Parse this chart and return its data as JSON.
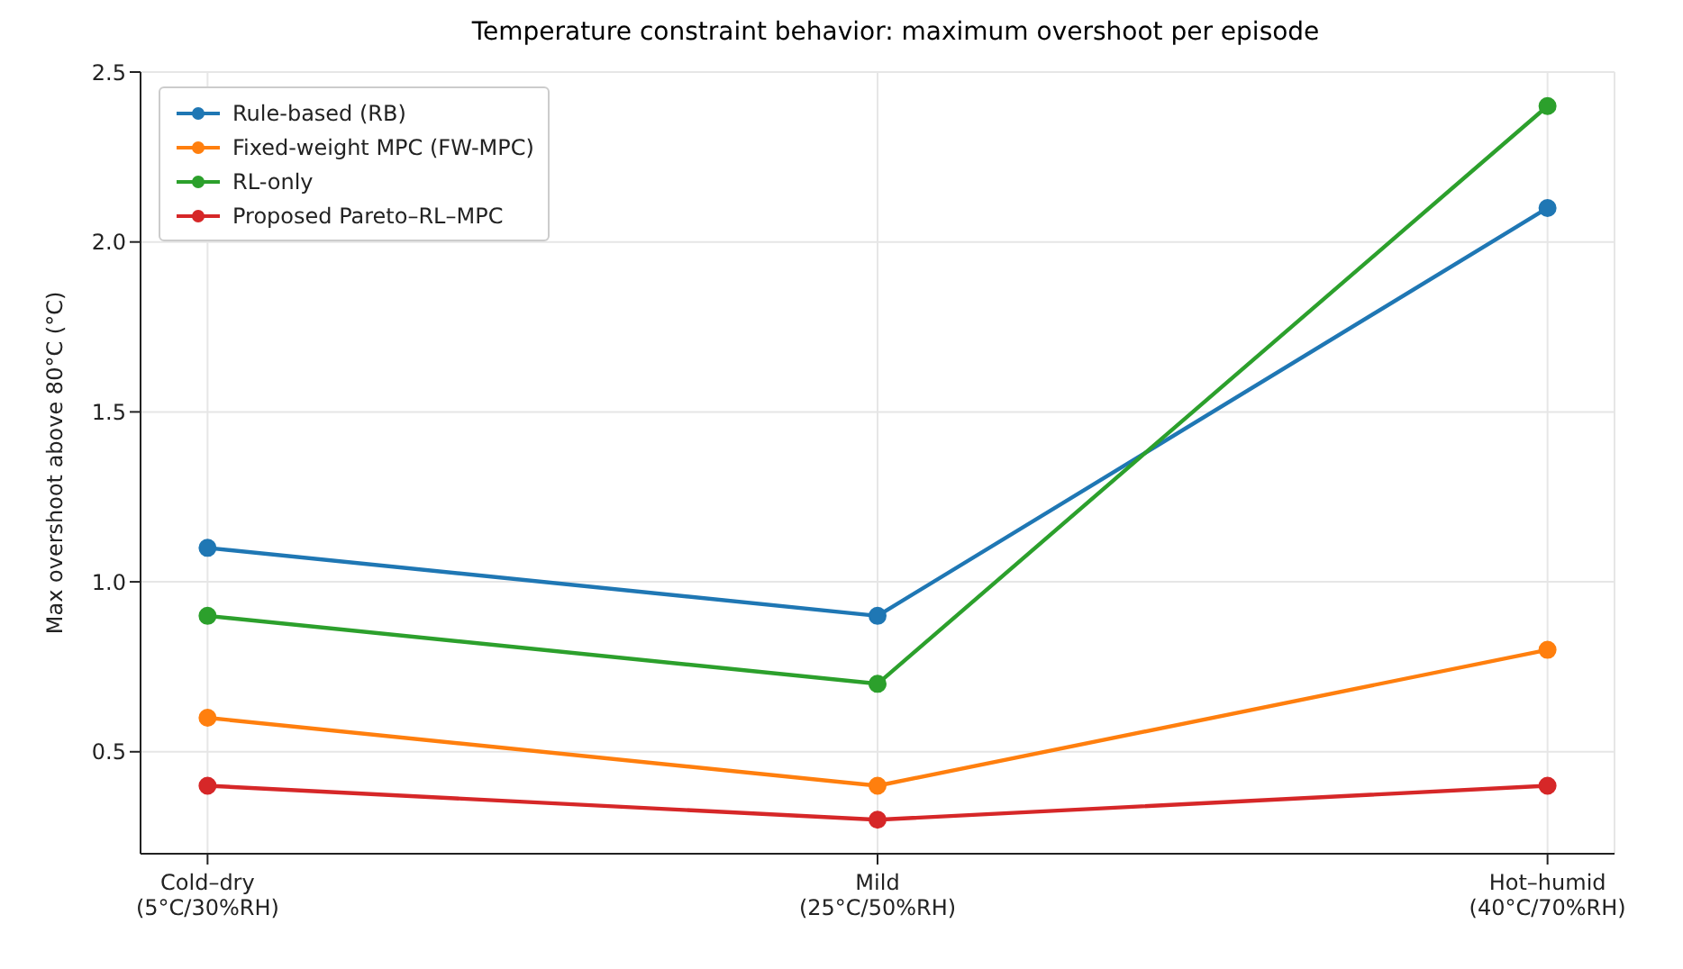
{
  "chart_data": {
    "type": "line",
    "title": "Temperature constraint behavior: maximum overshoot per episode",
    "ylabel": "Max overshoot above 80°C (°C)",
    "categories": [
      "Cold–dry\n(5°C/30%RH)",
      "Mild\n(25°C/50%RH)",
      "Hot–humid\n(40°C/70%RH)"
    ],
    "series": [
      {
        "name": "Rule-based (RB)",
        "color": "#1f77b4",
        "values": [
          1.1,
          0.9,
          2.1
        ]
      },
      {
        "name": "Fixed-weight MPC (FW-MPC)",
        "color": "#ff7f0e",
        "values": [
          0.6,
          0.4,
          0.8
        ]
      },
      {
        "name": "RL-only",
        "color": "#2ca02c",
        "values": [
          0.9,
          0.7,
          2.4
        ]
      },
      {
        "name": "Proposed Pareto–RL–MPC",
        "color": "#d62728",
        "values": [
          0.4,
          0.3,
          0.4
        ]
      }
    ],
    "ylim": [
      0.2,
      2.5
    ],
    "yticks": [
      0.5,
      {
        "value": 1,
        "label": "1.0"
      },
      1.5,
      {
        "value": 2,
        "label": "2.0"
      },
      2.5
    ],
    "grid": true,
    "legend": "top left",
    "marker": "circle",
    "line_style": "solid"
  }
}
